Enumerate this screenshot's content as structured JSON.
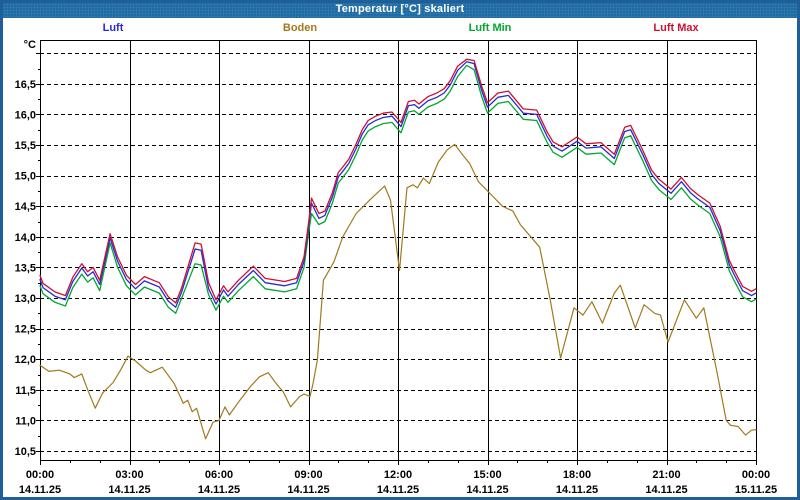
{
  "window": {
    "title": "Temperatur [°C] skaliert",
    "titlebar_color": "#1e6ba4",
    "frame_color": "#1d5f96"
  },
  "legend": {
    "items": [
      {
        "label": "Luft",
        "color": "#2a2ad4"
      },
      {
        "label": "Boden",
        "color": "#a07a1e"
      },
      {
        "label": "Luft Min",
        "color": "#00a830"
      },
      {
        "label": "Luft Max",
        "color": "#cc1133"
      }
    ]
  },
  "chart_data": {
    "type": "line",
    "title": "Temperatur [°C] skaliert",
    "ylabel": "°C",
    "unit_label": "°C",
    "ylim": [
      10.35,
      17.2
    ],
    "xlim_hours": [
      0,
      24
    ],
    "grid": {
      "y_step": 0.5,
      "y_range": [
        10.5,
        17.0
      ],
      "x_step_hours": 3,
      "y_style": "dashed",
      "x_style": "solid"
    },
    "y_ticks": [
      {
        "value": 16.5,
        "label": "16,5"
      },
      {
        "value": 16.0,
        "label": "16,0"
      },
      {
        "value": 15.5,
        "label": "15,5"
      },
      {
        "value": 15.0,
        "label": "15,0"
      },
      {
        "value": 14.5,
        "label": "14,5"
      },
      {
        "value": 14.0,
        "label": "14,0"
      },
      {
        "value": 13.5,
        "label": "13,5"
      },
      {
        "value": 13.0,
        "label": "13,0"
      },
      {
        "value": 12.5,
        "label": "12,5"
      },
      {
        "value": 12.0,
        "label": "12,0"
      },
      {
        "value": 11.5,
        "label": "11,5"
      },
      {
        "value": 11.0,
        "label": "11,0"
      },
      {
        "value": 10.5,
        "label": "10,5"
      }
    ],
    "x_ticks": [
      {
        "hour": 0,
        "time": "00:00",
        "date": "14.11.25"
      },
      {
        "hour": 3,
        "time": "03:00",
        "date": "14.11.25"
      },
      {
        "hour": 6,
        "time": "06:00",
        "date": "14.11.25"
      },
      {
        "hour": 9,
        "time": "09:00",
        "date": "14.11.25"
      },
      {
        "hour": 12,
        "time": "12:00",
        "date": "14.11.25"
      },
      {
        "hour": 15,
        "time": "15:00",
        "date": "14.11.25"
      },
      {
        "hour": 18,
        "time": "18:00",
        "date": "14.11.25"
      },
      {
        "hour": 21,
        "time": "21:00",
        "date": "14.11.25"
      },
      {
        "hour": 24,
        "time": "00:00",
        "date": "15.11.25"
      }
    ],
    "series": [
      {
        "name": "Boden",
        "color": "#a07a1e",
        "width": 1.2,
        "x": [
          0,
          0.3,
          0.65,
          1.0,
          1.15,
          1.4,
          1.6,
          1.85,
          2.1,
          2.45,
          2.7,
          2.95,
          3.2,
          3.55,
          3.7,
          4.1,
          4.5,
          4.8,
          4.95,
          5.1,
          5.25,
          5.55,
          5.8,
          6.0,
          6.2,
          6.35,
          6.7,
          7.05,
          7.35,
          7.65,
          7.95,
          8.15,
          8.4,
          8.7,
          8.85,
          9.05,
          9.15,
          9.3,
          9.5,
          9.85,
          10.15,
          10.6,
          11.05,
          11.55,
          11.75,
          12.05,
          12.3,
          12.5,
          12.65,
          12.85,
          13.05,
          13.35,
          13.65,
          13.9,
          14.15,
          14.4,
          14.7,
          15.1,
          15.5,
          15.85,
          16.1,
          16.75,
          17.1,
          17.45,
          17.9,
          18.2,
          18.5,
          18.85,
          19.25,
          19.45,
          19.95,
          20.25,
          20.6,
          20.8,
          21.05,
          21.6,
          22.0,
          22.25,
          22.7,
          23.0,
          23.15,
          23.4,
          23.65,
          23.85,
          24
        ],
        "y": [
          11.9,
          11.8,
          11.82,
          11.76,
          11.7,
          11.76,
          11.5,
          11.2,
          11.45,
          11.62,
          11.82,
          12.05,
          11.97,
          11.82,
          11.78,
          11.87,
          11.6,
          11.28,
          11.33,
          11.14,
          11.2,
          10.7,
          10.97,
          11.0,
          11.22,
          11.09,
          11.33,
          11.55,
          11.71,
          11.78,
          11.58,
          11.47,
          11.22,
          11.39,
          11.43,
          11.39,
          11.6,
          11.99,
          13.29,
          13.59,
          14.0,
          14.38,
          14.6,
          14.83,
          14.6,
          13.45,
          14.8,
          14.85,
          14.8,
          14.96,
          14.87,
          15.22,
          15.42,
          15.51,
          15.35,
          15.2,
          14.9,
          14.7,
          14.5,
          14.42,
          14.2,
          13.83,
          12.97,
          12.02,
          12.84,
          12.72,
          12.94,
          12.59,
          13.08,
          13.21,
          12.51,
          12.89,
          12.75,
          12.72,
          12.28,
          12.97,
          12.67,
          12.84,
          11.77,
          11.0,
          10.92,
          10.9,
          10.76,
          10.84,
          10.85
        ]
      },
      {
        "name": "Luft Min",
        "color": "#00a830",
        "width": 1.3,
        "x": [
          0,
          0.1,
          0.5,
          0.85,
          1.1,
          1.4,
          1.6,
          1.78,
          2.0,
          2.35,
          2.6,
          2.9,
          3.2,
          3.5,
          4.0,
          4.3,
          4.55,
          4.75,
          5.2,
          5.4,
          5.65,
          5.9,
          6.15,
          6.3,
          6.65,
          7.15,
          7.55,
          8.2,
          8.6,
          8.85,
          9.0,
          9.1,
          9.35,
          9.55,
          9.8,
          10.0,
          10.15,
          10.35,
          10.6,
          10.8,
          11.0,
          11.25,
          11.5,
          11.8,
          12.1,
          12.35,
          12.55,
          12.7,
          13.0,
          13.3,
          13.55,
          13.75,
          14.0,
          14.3,
          14.55,
          14.8,
          15.0,
          15.35,
          15.7,
          16.2,
          16.65,
          17.0,
          17.2,
          17.5,
          18.0,
          18.3,
          18.8,
          19.25,
          19.6,
          19.8,
          20.2,
          20.5,
          20.75,
          21.15,
          21.5,
          21.8,
          22.05,
          22.45,
          22.8,
          23.1,
          23.25,
          23.55,
          23.85,
          24
        ],
        "y": [
          13.2,
          13.07,
          12.93,
          12.87,
          13.17,
          13.39,
          13.26,
          13.33,
          13.12,
          13.9,
          13.5,
          13.2,
          13.05,
          13.18,
          13.08,
          12.85,
          12.75,
          13.0,
          13.56,
          13.54,
          13.05,
          12.8,
          13.03,
          12.93,
          13.12,
          13.35,
          13.15,
          13.1,
          13.15,
          13.5,
          14.05,
          14.38,
          14.2,
          14.25,
          14.55,
          14.88,
          14.97,
          15.1,
          15.35,
          15.58,
          15.73,
          15.8,
          15.85,
          15.87,
          15.7,
          16.04,
          16.06,
          16.0,
          16.12,
          16.18,
          16.25,
          16.38,
          16.62,
          16.8,
          16.73,
          16.3,
          16.02,
          16.18,
          16.21,
          15.92,
          15.9,
          15.54,
          15.38,
          15.3,
          15.46,
          15.35,
          15.37,
          15.18,
          15.62,
          15.65,
          15.25,
          14.92,
          14.77,
          14.61,
          14.8,
          14.62,
          14.52,
          14.38,
          14.0,
          13.45,
          13.3,
          13.02,
          12.94,
          12.98
        ]
      },
      {
        "name": "Luft",
        "color": "#2a2ad4",
        "width": 1.3,
        "x": [
          0,
          0.1,
          0.5,
          0.85,
          1.1,
          1.4,
          1.6,
          1.78,
          2.0,
          2.35,
          2.6,
          2.9,
          3.2,
          3.5,
          4.0,
          4.3,
          4.55,
          4.75,
          5.2,
          5.4,
          5.65,
          5.9,
          6.15,
          6.3,
          6.65,
          7.15,
          7.55,
          8.2,
          8.6,
          8.85,
          9.0,
          9.1,
          9.35,
          9.55,
          9.8,
          10.0,
          10.15,
          10.35,
          10.6,
          10.8,
          11.0,
          11.25,
          11.5,
          11.8,
          12.1,
          12.35,
          12.55,
          12.7,
          13.0,
          13.3,
          13.55,
          13.75,
          14.0,
          14.3,
          14.55,
          14.8,
          15.0,
          15.35,
          15.7,
          16.2,
          16.65,
          17.0,
          17.2,
          17.5,
          18.0,
          18.3,
          18.8,
          19.25,
          19.6,
          19.8,
          20.2,
          20.5,
          20.75,
          21.15,
          21.5,
          21.8,
          22.05,
          22.45,
          22.8,
          23.1,
          23.25,
          23.55,
          23.85,
          24
        ],
        "y": [
          13.3,
          13.17,
          13.03,
          12.97,
          13.27,
          13.49,
          13.36,
          13.43,
          13.22,
          13.98,
          13.6,
          13.3,
          13.15,
          13.28,
          13.18,
          12.95,
          12.85,
          13.1,
          13.8,
          13.78,
          13.15,
          12.9,
          13.13,
          13.03,
          13.22,
          13.45,
          13.25,
          13.2,
          13.25,
          13.6,
          14.15,
          14.55,
          14.3,
          14.35,
          14.65,
          14.98,
          15.07,
          15.2,
          15.45,
          15.68,
          15.83,
          15.9,
          15.95,
          15.97,
          15.8,
          16.14,
          16.16,
          16.1,
          16.22,
          16.28,
          16.35,
          16.48,
          16.72,
          16.86,
          16.83,
          16.4,
          16.12,
          16.28,
          16.31,
          16.02,
          16.0,
          15.64,
          15.48,
          15.4,
          15.56,
          15.45,
          15.47,
          15.28,
          15.72,
          15.75,
          15.35,
          15.02,
          14.87,
          14.71,
          14.9,
          14.72,
          14.62,
          14.48,
          14.1,
          13.55,
          13.4,
          13.12,
          13.04,
          13.08
        ]
      },
      {
        "name": "Luft Max",
        "color": "#cc1133",
        "width": 1.3,
        "x": [
          0,
          0.1,
          0.5,
          0.85,
          1.1,
          1.4,
          1.6,
          1.78,
          2.0,
          2.35,
          2.6,
          2.9,
          3.2,
          3.5,
          4.0,
          4.3,
          4.55,
          4.75,
          5.2,
          5.4,
          5.65,
          5.9,
          6.15,
          6.3,
          6.65,
          7.15,
          7.55,
          8.2,
          8.6,
          8.85,
          9.0,
          9.1,
          9.35,
          9.55,
          9.8,
          10.0,
          10.15,
          10.35,
          10.6,
          10.8,
          11.0,
          11.25,
          11.5,
          11.8,
          12.1,
          12.35,
          12.55,
          12.7,
          13.0,
          13.3,
          13.55,
          13.75,
          14.0,
          14.3,
          14.55,
          14.8,
          15.0,
          15.35,
          15.7,
          16.2,
          16.65,
          17.0,
          17.2,
          17.5,
          18.0,
          18.3,
          18.8,
          19.25,
          19.6,
          19.8,
          20.2,
          20.5,
          20.75,
          21.15,
          21.5,
          21.8,
          22.05,
          22.45,
          22.8,
          23.1,
          23.25,
          23.55,
          23.85,
          24
        ],
        "y": [
          13.37,
          13.24,
          13.1,
          13.04,
          13.34,
          13.56,
          13.43,
          13.5,
          13.29,
          14.05,
          13.67,
          13.37,
          13.22,
          13.35,
          13.25,
          13.02,
          12.92,
          13.17,
          13.9,
          13.88,
          13.25,
          12.97,
          13.2,
          13.1,
          13.29,
          13.52,
          13.32,
          13.27,
          13.32,
          13.67,
          14.22,
          14.63,
          14.38,
          14.42,
          14.72,
          15.05,
          15.14,
          15.27,
          15.52,
          15.75,
          15.9,
          15.97,
          16.02,
          16.04,
          15.87,
          16.21,
          16.23,
          16.17,
          16.29,
          16.35,
          16.42,
          16.55,
          16.79,
          16.9,
          16.88,
          16.47,
          16.19,
          16.35,
          16.38,
          16.09,
          16.07,
          15.71,
          15.55,
          15.47,
          15.63,
          15.52,
          15.54,
          15.35,
          15.79,
          15.82,
          15.42,
          15.09,
          14.94,
          14.78,
          14.97,
          14.79,
          14.69,
          14.55,
          14.17,
          13.62,
          13.47,
          13.19,
          13.11,
          13.15
        ]
      }
    ]
  }
}
